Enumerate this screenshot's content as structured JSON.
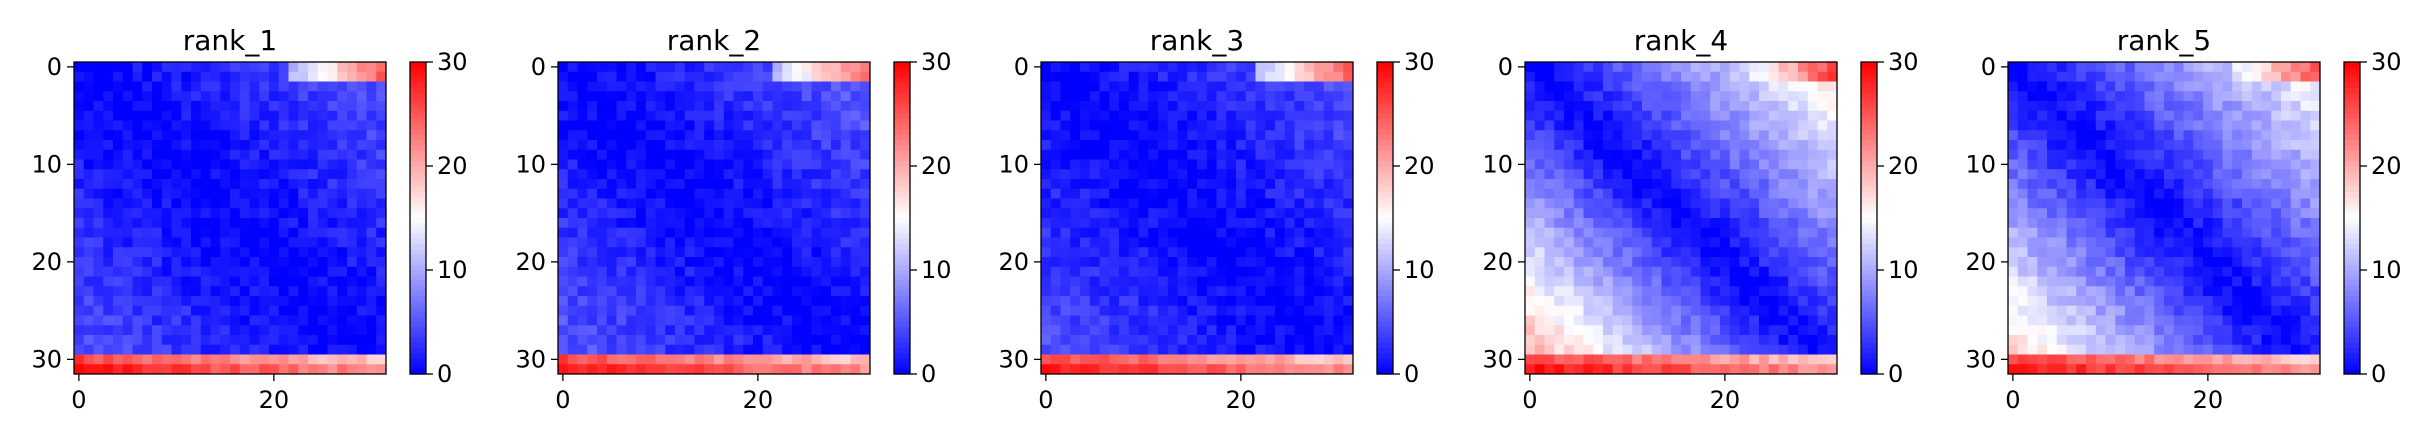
{
  "chart_data": [
    {
      "type": "heatmap",
      "title": "rank_1",
      "xlim": [
        0,
        32
      ],
      "ylim": [
        32,
        0
      ],
      "x_ticks": [
        "0",
        "20"
      ],
      "y_ticks": [
        "0",
        "10",
        "20",
        "30"
      ],
      "colorbar": {
        "ticks": [
          "0",
          "10",
          "20",
          "30"
        ],
        "range": [
          0,
          30
        ],
        "cmap": "bwr"
      },
      "pattern": {
        "diag_min": 0,
        "gradient": 0.16,
        "bottom_rows_value": 29,
        "top_right_value": 24,
        "lower_left_value": 6
      }
    },
    {
      "type": "heatmap",
      "title": "rank_2",
      "xlim": [
        0,
        32
      ],
      "ylim": [
        32,
        0
      ],
      "x_ticks": [
        "0",
        "20"
      ],
      "y_ticks": [
        "0",
        "10",
        "20",
        "30"
      ],
      "colorbar": {
        "ticks": [
          "0",
          "10",
          "20",
          "30"
        ],
        "range": [
          0,
          30
        ],
        "cmap": "bwr"
      },
      "pattern": {
        "diag_min": 0,
        "gradient": 0.18,
        "bottom_rows_value": 29,
        "top_right_value": 24,
        "lower_left_value": 6
      }
    },
    {
      "type": "heatmap",
      "title": "rank_3",
      "xlim": [
        0,
        32
      ],
      "ylim": [
        32,
        0
      ],
      "x_ticks": [
        "0",
        "20"
      ],
      "y_ticks": [
        "0",
        "10",
        "20",
        "30"
      ],
      "colorbar": {
        "ticks": [
          "0",
          "10",
          "20",
          "30"
        ],
        "range": [
          0,
          30
        ],
        "cmap": "bwr"
      },
      "pattern": {
        "diag_min": 0,
        "gradient": 0.16,
        "bottom_rows_value": 29,
        "top_right_value": 24,
        "lower_left_value": 6
      }
    },
    {
      "type": "heatmap",
      "title": "rank_4",
      "xlim": [
        0,
        32
      ],
      "ylim": [
        32,
        0
      ],
      "x_ticks": [
        "0",
        "20"
      ],
      "y_ticks": [
        "0",
        "10",
        "20",
        "30"
      ],
      "colorbar": {
        "ticks": [
          "0",
          "10",
          "20",
          "30"
        ],
        "range": [
          0,
          30
        ],
        "cmap": "bwr"
      },
      "pattern": {
        "diag_min": 0,
        "gradient": 0.55,
        "bottom_rows_value": 29,
        "top_right_value": 26,
        "lower_left_value": 17
      }
    },
    {
      "type": "heatmap",
      "title": "rank_5",
      "xlim": [
        0,
        32
      ],
      "ylim": [
        32,
        0
      ],
      "x_ticks": [
        "0",
        "20"
      ],
      "y_ticks": [
        "0",
        "10",
        "20",
        "30"
      ],
      "colorbar": {
        "ticks": [
          "0",
          "10",
          "20",
          "30"
        ],
        "range": [
          0,
          30
        ],
        "cmap": "bwr"
      },
      "pattern": {
        "diag_min": 0,
        "gradient": 0.5,
        "bottom_rows_value": 29,
        "top_right_value": 25,
        "lower_left_value": 15
      }
    }
  ]
}
